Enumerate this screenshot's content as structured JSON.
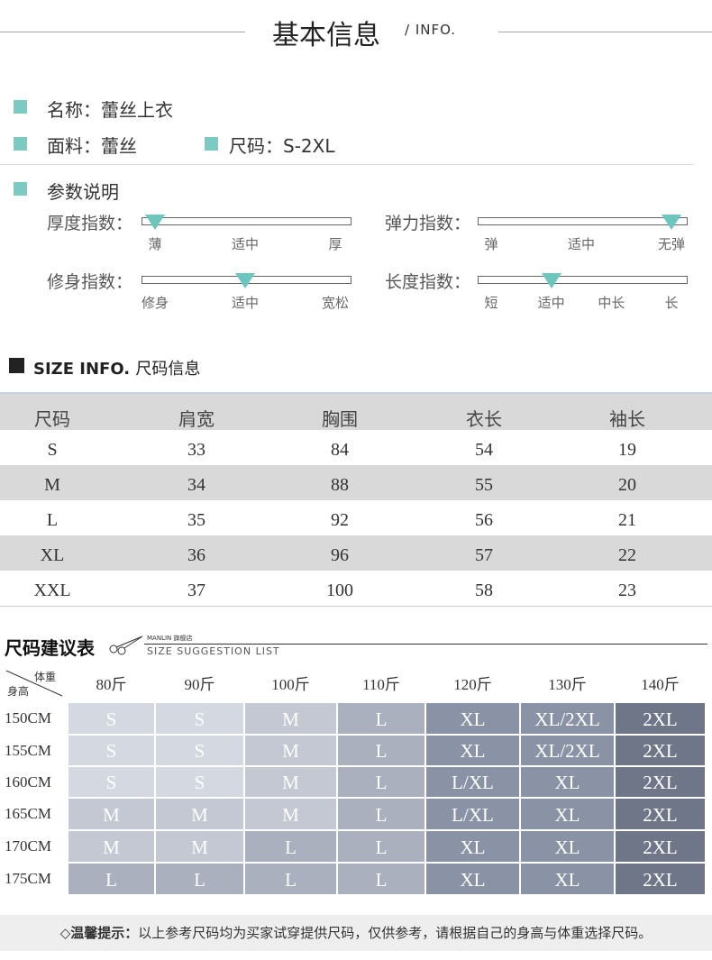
{
  "header": {
    "title": "基本信息",
    "subtitle": "/ INFO."
  },
  "basic": [
    {
      "label": "名称：",
      "value": "蕾丝上衣"
    },
    {
      "label": "面料：",
      "value": "蕾丝"
    },
    {
      "label": "尺码：",
      "value": "S-2XL"
    }
  ],
  "params": {
    "title": "参数说明",
    "sliders": [
      {
        "label": "厚度指数：",
        "ticks": [
          "薄",
          "适中",
          "厚"
        ],
        "selected": 0
      },
      {
        "label": "弹力指数：",
        "ticks": [
          "弹",
          "适中",
          "无弹"
        ],
        "selected": 2
      },
      {
        "label": "修身指数：",
        "ticks": [
          "修身",
          "适中",
          "宽松"
        ],
        "selected": 1
      },
      {
        "label": "长度指数：",
        "ticks": [
          "短",
          "适中",
          "中长",
          "长"
        ],
        "selected": 1
      }
    ]
  },
  "size_info": {
    "title": "SIZE INFO.",
    "title_cn": "尺码信息",
    "headers": [
      "尺码",
      "肩宽",
      "胸围",
      "衣长",
      "袖长"
    ],
    "rows": [
      [
        "S",
        "33",
        "84",
        "54",
        "19"
      ],
      [
        "M",
        "34",
        "88",
        "55",
        "20"
      ],
      [
        "L",
        "35",
        "92",
        "56",
        "21"
      ],
      [
        "XL",
        "36",
        "96",
        "57",
        "22"
      ],
      [
        "XXL",
        "37",
        "100",
        "58",
        "23"
      ]
    ]
  },
  "suggestion": {
    "title": "尺码建议表",
    "brand": "MANLIN 旗舰店",
    "subtitle": "SIZE SUGGESTION LIST",
    "corner_weight": "体重",
    "corner_height": "身高",
    "weights": [
      "80斤",
      "90斤",
      "100斤",
      "110斤",
      "120斤",
      "130斤",
      "140斤"
    ],
    "heights": [
      "150CM",
      "155CM",
      "160CM",
      "165CM",
      "170CM",
      "175CM"
    ],
    "cells": [
      [
        "S",
        "S",
        "M",
        "L",
        "XL",
        "XL/2XL",
        "2XL"
      ],
      [
        "S",
        "S",
        "M",
        "L",
        "XL",
        "XL/2XL",
        "2XL"
      ],
      [
        "S",
        "S",
        "M",
        "L",
        "L/XL",
        "XL",
        "2XL"
      ],
      [
        "M",
        "M",
        "M",
        "L",
        "L/XL",
        "XL",
        "2XL"
      ],
      [
        "M",
        "M",
        "L",
        "L",
        "XL",
        "XL",
        "2XL"
      ],
      [
        "L",
        "L",
        "L",
        "L",
        "XL",
        "XL",
        "2XL"
      ]
    ],
    "size_colors": {
      "S": "#d4d8e0",
      "M": "#c3c8d2",
      "L": "#aab0be",
      "XL": "#8a93a6",
      "L/XL": "#8a93a6",
      "XL/2XL": "#8a93a6",
      "2XL": "#6f7688"
    }
  },
  "notice": {
    "label": "◇温馨提示：",
    "text": "以上参考尺码均为买家试穿提供尺码，仅供参考，请根据自己的身高与体重选择尺码。"
  }
}
